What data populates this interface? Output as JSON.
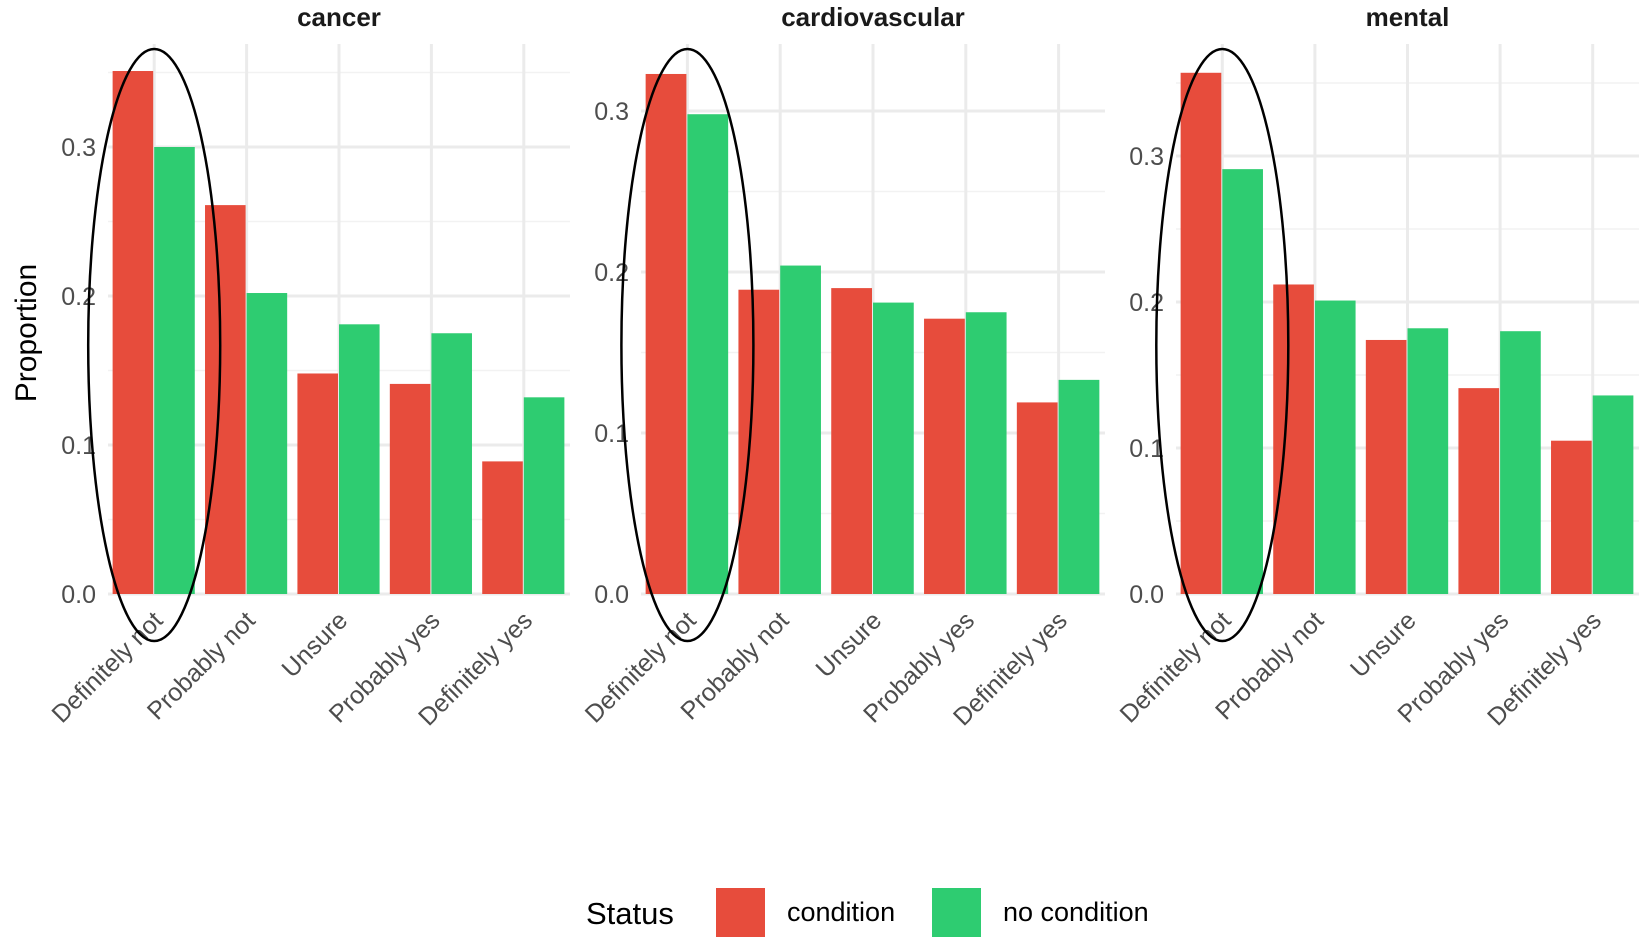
{
  "chart_data": {
    "type": "bar",
    "ylabel": "Proportion",
    "categories": [
      "Definitely not",
      "Probably not",
      "Unsure",
      "Probably yes",
      "Definitely yes"
    ],
    "legend": {
      "title": "Status",
      "position": "bottom",
      "entries": [
        {
          "label": "condition",
          "color": "#e74c3c"
        },
        {
          "label": "no condition",
          "color": "#2ecc71"
        }
      ]
    },
    "grid": true,
    "annotation": "ellipse around Definitely not bars in each panel",
    "facets": [
      {
        "title": "cancer",
        "ylim": [
          0,
          0.36
        ],
        "yticks": [
          0.0,
          0.1,
          0.2,
          0.3
        ],
        "ytick_labels": [
          "0.0",
          "0.1",
          "0.2",
          "0.3"
        ],
        "series": [
          {
            "name": "condition",
            "values": [
              0.351,
              0.261,
              0.148,
              0.141,
              0.089
            ]
          },
          {
            "name": "no condition",
            "values": [
              0.3,
              0.202,
              0.181,
              0.175,
              0.132
            ]
          }
        ]
      },
      {
        "title": "cardiovascular",
        "ylim": [
          0,
          0.34
        ],
        "yticks": [
          0.0,
          0.1,
          0.2,
          0.3
        ],
        "ytick_labels": [
          "0.0",
          "0.1",
          "0.2",
          "0.3"
        ],
        "series": [
          {
            "name": "condition",
            "values": [
              0.323,
              0.189,
              0.19,
              0.171,
              0.119
            ]
          },
          {
            "name": "no condition",
            "values": [
              0.298,
              0.204,
              0.181,
              0.175,
              0.133
            ]
          }
        ]
      },
      {
        "title": "mental",
        "ylim": [
          0,
          0.38
        ],
        "yticks": [
          0.0,
          0.1,
          0.2,
          0.3
        ],
        "ytick_labels": [
          "0.0",
          "0.1",
          "0.2",
          "0.3"
        ],
        "series": [
          {
            "name": "condition",
            "values": [
              0.357,
              0.212,
              0.174,
              0.141,
              0.105
            ]
          },
          {
            "name": "no condition",
            "values": [
              0.291,
              0.201,
              0.182,
              0.18,
              0.136
            ]
          }
        ]
      }
    ]
  }
}
